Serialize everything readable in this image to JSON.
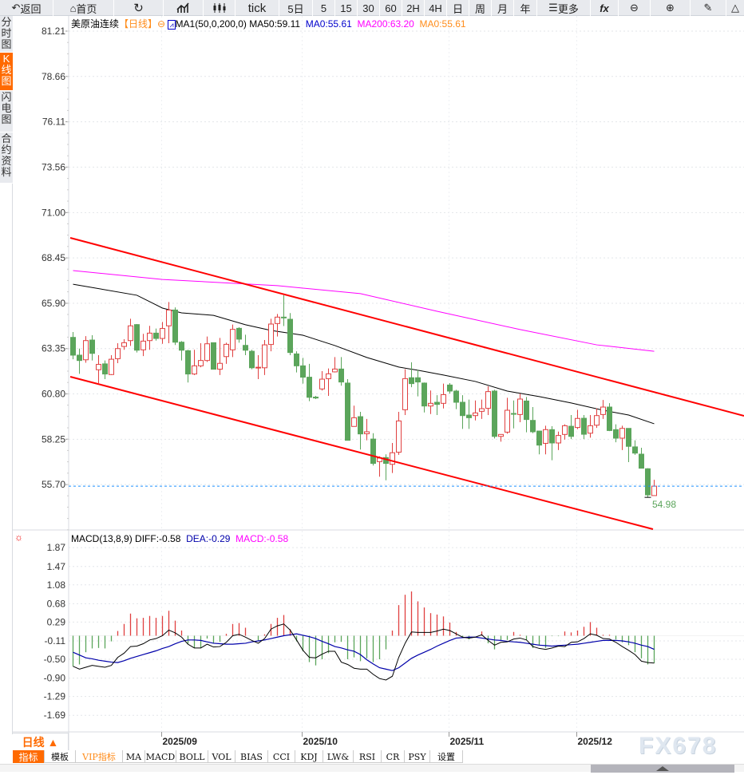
{
  "toolbar": {
    "back": "返回",
    "home": "首页",
    "tick": "tick",
    "d5": "5日",
    "periods": [
      "5",
      "15",
      "30",
      "60",
      "2H",
      "4H",
      "日",
      "周",
      "月",
      "年"
    ],
    "more": "更多",
    "fx": "fx"
  },
  "sidebar": {
    "tabs": [
      "分时图",
      "K线图",
      "闪电图",
      "合约资料"
    ],
    "active": "K线图"
  },
  "legend": {
    "symbol": "美原油连续",
    "period": "【日线】",
    "ma_name": "MA1(50,0,200,0)",
    "ma50": "MA50:59.11",
    "ma0a": "MA0:55.61",
    "ma200": "MA200:63.20",
    "ma0b": "MA0:55.61"
  },
  "macd_legend": {
    "name": "MACD(13,8,9)",
    "diff": "DIFF:-0.58",
    "dea": "DEA:-0.29",
    "macd": "MACD:-0.58"
  },
  "last_low_label": "54.98",
  "xaxis_tab": "日线 ▲",
  "bottom_tabs": [
    "指标",
    "模板",
    "VIP指标",
    "MA",
    "MACD",
    "BOLL",
    "VOL",
    "BIAS",
    "CCI",
    "KDJ",
    "LW&",
    "RSI",
    "CR",
    "PSY",
    "设置"
  ],
  "watermark": "FX678",
  "colors": {
    "up": "#e04040",
    "down": "#5ba55b",
    "ma50": "#000000",
    "ma200": "#ff00ff",
    "trend": "#ff0000",
    "dea": "#0000aa",
    "last": "#1e90ff",
    "accent": "#ff6a00"
  },
  "chart_data": [
    {
      "type": "candlestick",
      "title": "美原油连续",
      "yticks": [
        "81.21",
        "78.66",
        "76.11",
        "73.56",
        "71.00",
        "68.45",
        "65.90",
        "63.35",
        "60.80",
        "58.25",
        "55.70"
      ],
      "ylim": [
        55.7,
        81.21
      ],
      "xticks": [
        {
          "label": "2025/09",
          "index": 14
        },
        {
          "label": "2025/10",
          "index": 36
        },
        {
          "label": "2025/11",
          "index": 59
        },
        {
          "label": "2025/12",
          "index": 79
        }
      ],
      "last_price": 55.61,
      "ohlc": [
        [
          63.98,
          64.28,
          62.75,
          62.98
        ],
        [
          62.98,
          63.35,
          61.93,
          62.68
        ],
        [
          62.72,
          64.05,
          62.55,
          63.8
        ],
        [
          63.83,
          64.1,
          62.68,
          63.08
        ],
        [
          62.16,
          62.98,
          61.41,
          62.46
        ],
        [
          62.49,
          62.68,
          61.63,
          61.92
        ],
        [
          61.89,
          62.98,
          61.86,
          62.75
        ],
        [
          62.78,
          63.65,
          62.53,
          63.35
        ],
        [
          63.47,
          63.88,
          63.28,
          63.68
        ],
        [
          63.8,
          65.03,
          63.5,
          64.63
        ],
        [
          64.7,
          64.73,
          63.13,
          63.26
        ],
        [
          63.28,
          64.18,
          62.93,
          63.77
        ],
        [
          63.8,
          64.63,
          63.28,
          64.22
        ],
        [
          64.22,
          64.48,
          63.8,
          63.92
        ],
        [
          63.92,
          64.85,
          63.62,
          64.48
        ],
        [
          64.63,
          65.97,
          63.65,
          65.52
        ],
        [
          65.52,
          65.67,
          63.55,
          63.71
        ],
        [
          63.71,
          63.77,
          62.68,
          63.26
        ],
        [
          63.23,
          63.28,
          61.44,
          61.92
        ],
        [
          61.92,
          63.28,
          61.86,
          62.38
        ],
        [
          62.38,
          63.65,
          62.3,
          62.68
        ],
        [
          62.68,
          64.03,
          62.6,
          63.62
        ],
        [
          63.68,
          63.7,
          62.18,
          62.19
        ],
        [
          62.19,
          63.95,
          61.86,
          62.52
        ],
        [
          62.9,
          63.68,
          62.49,
          63.59
        ],
        [
          63.28,
          64.7,
          62.87,
          64.43
        ],
        [
          64.49,
          64.55,
          63.68,
          63.88
        ],
        [
          63.53,
          64.13,
          62.98,
          63.26
        ],
        [
          63.2,
          63.28,
          62.19,
          62.27
        ],
        [
          62.27,
          62.98,
          61.63,
          62.3
        ],
        [
          62.27,
          63.83,
          61.86,
          63.56
        ],
        [
          63.58,
          65.03,
          63.2,
          64.73
        ],
        [
          64.76,
          65.3,
          64.03,
          65.12
        ],
        [
          65.12,
          66.35,
          64.62,
          65.1
        ],
        [
          65.0,
          65.35,
          62.98,
          63.13
        ],
        [
          63.05,
          63.2,
          62.01,
          62.38
        ],
        [
          62.38,
          62.83,
          61.38,
          61.74
        ],
        [
          61.74,
          62.49,
          60.39,
          60.61
        ],
        [
          60.62,
          60.69,
          60.51,
          60.57
        ],
        [
          61.08,
          62.08,
          60.99,
          61.63
        ],
        [
          61.66,
          62.23,
          60.69,
          61.93
        ],
        [
          62.04,
          62.87,
          62.01,
          62.2
        ],
        [
          62.2,
          62.87,
          61.26,
          61.47
        ],
        [
          61.41,
          61.63,
          58.19,
          58.19
        ],
        [
          58.97,
          60.14,
          58.97,
          59.46
        ],
        [
          59.52,
          59.79,
          57.67,
          58.55
        ],
        [
          58.56,
          59.39,
          58.19,
          58.67
        ],
        [
          58.26,
          58.59,
          56.77,
          56.89
        ],
        [
          56.99,
          57.29,
          56.14,
          57.19
        ],
        [
          57.22,
          57.4,
          55.94,
          56.89
        ],
        [
          56.84,
          58.04,
          56.35,
          57.49
        ],
        [
          57.52,
          59.79,
          57.37,
          59.28
        ],
        [
          59.91,
          62.19,
          59.61,
          61.66
        ],
        [
          61.71,
          62.58,
          61.18,
          61.38
        ],
        [
          61.71,
          62.16,
          60.66,
          61.47
        ],
        [
          61.41,
          61.44,
          59.76,
          60.12
        ],
        [
          60.12,
          60.99,
          59.67,
          60.27
        ],
        [
          60.33,
          60.73,
          59.61,
          60.21
        ],
        [
          60.27,
          61.38,
          59.98,
          60.76
        ],
        [
          61.3,
          61.41,
          60.81,
          60.96
        ],
        [
          60.96,
          61.03,
          59.94,
          60.33
        ],
        [
          60.33,
          60.73,
          58.83,
          59.58
        ],
        [
          59.61,
          60.48,
          58.83,
          59.46
        ],
        [
          59.58,
          60.43,
          59.31,
          59.73
        ],
        [
          59.82,
          60.48,
          59.39,
          59.97
        ],
        [
          59.99,
          61.23,
          59.61,
          60.93
        ],
        [
          60.96,
          61.03,
          58.29,
          58.41
        ],
        [
          58.41,
          58.53,
          58.11,
          58.52
        ],
        [
          58.65,
          60.58,
          58.56,
          59.88
        ],
        [
          59.7,
          60.43,
          58.86,
          59.68
        ],
        [
          59.64,
          60.81,
          59.21,
          60.51
        ],
        [
          60.4,
          60.63,
          58.64,
          59.36
        ],
        [
          59.31,
          60.06,
          58.59,
          58.67
        ],
        [
          58.71,
          58.71,
          57.4,
          57.92
        ],
        [
          58.02,
          59.01,
          57.4,
          58.79
        ],
        [
          58.79,
          58.98,
          57.07,
          58.04
        ],
        [
          58.04,
          58.68,
          57.64,
          58.46
        ],
        [
          58.52,
          59.09,
          58.23,
          59.01
        ],
        [
          58.98,
          59.61,
          58.26,
          58.41
        ],
        [
          58.91,
          59.91,
          58.82,
          59.42
        ],
        [
          59.43,
          59.61,
          58.26,
          58.53
        ],
        [
          58.59,
          59.61,
          58.34,
          59.01
        ],
        [
          59.04,
          59.99,
          58.89,
          59.58
        ],
        [
          59.64,
          60.46,
          59.39,
          60.06
        ],
        [
          60.06,
          60.28,
          58.71,
          58.74
        ],
        [
          58.79,
          59.09,
          58.08,
          58.31
        ],
        [
          58.31,
          59.01,
          57.64,
          58.86
        ],
        [
          58.86,
          58.86,
          56.96,
          57.85
        ],
        [
          57.82,
          58.19,
          57.37,
          57.47
        ],
        [
          57.41,
          57.77,
          56.62,
          56.62
        ],
        [
          56.59,
          56.62,
          54.98,
          55.12
        ],
        [
          55.08,
          55.97,
          55.08,
          55.61
        ]
      ],
      "ma50": [
        [
          0,
          66.97
        ],
        [
          10,
          66.35
        ],
        [
          14,
          65.63
        ],
        [
          17,
          65.36
        ],
        [
          22,
          65.22
        ],
        [
          27,
          64.69
        ],
        [
          31,
          64.37
        ],
        [
          36,
          64.1
        ],
        [
          41,
          63.52
        ],
        [
          46,
          62.85
        ],
        [
          51,
          62.31
        ],
        [
          54,
          62.13
        ],
        [
          58,
          61.86
        ],
        [
          63,
          61.5
        ],
        [
          68,
          60.96
        ],
        [
          73,
          60.65
        ],
        [
          78,
          60.29
        ],
        [
          83,
          59.88
        ],
        [
          87,
          59.61
        ],
        [
          91,
          59.12
        ]
      ],
      "ma200": [
        [
          0,
          67.74
        ],
        [
          14,
          67.24
        ],
        [
          32,
          66.89
        ],
        [
          45,
          66.44
        ],
        [
          57,
          65.45
        ],
        [
          70,
          64.42
        ],
        [
          82,
          63.56
        ],
        [
          91,
          63.2
        ]
      ]
    },
    {
      "type": "macd",
      "title": "MACD(13,8,9)",
      "yticks": [
        "1.87",
        "1.47",
        "1.08",
        "0.68",
        "0.29",
        "-0.11",
        "-0.50",
        "-0.90",
        "-1.29",
        "-1.69"
      ],
      "ylim": [
        -1.69,
        1.87
      ],
      "macd": [
        -0.65,
        -0.61,
        -0.35,
        -0.27,
        -0.26,
        -0.27,
        -0.12,
        0.1,
        0.25,
        0.47,
        0.37,
        0.38,
        0.42,
        0.38,
        0.42,
        0.53,
        0.32,
        0.11,
        -0.17,
        -0.26,
        -0.26,
        -0.06,
        -0.16,
        -0.13,
        0.04,
        0.25,
        0.27,
        0.17,
        0.0,
        -0.1,
        0.03,
        0.25,
        0.38,
        0.44,
        0.14,
        -0.12,
        -0.33,
        -0.56,
        -0.63,
        -0.5,
        -0.37,
        -0.14,
        -0.13,
        -0.5,
        -0.46,
        -0.54,
        -0.48,
        -0.56,
        -0.5,
        -0.29,
        0.11,
        0.65,
        0.87,
        0.94,
        0.73,
        0.6,
        0.48,
        0.45,
        0.41,
        0.28,
        0.08,
        -0.04,
        -0.08,
        0.0,
        0.09,
        -0.16,
        -0.29,
        -0.09,
        -0.09,
        0.08,
        0.02,
        -0.09,
        -0.26,
        -0.2,
        -0.26,
        -0.01,
        -0.01,
        0.09,
        0.07,
        0.11,
        0.19,
        0.29,
        0.17,
        0.02,
        0.02,
        -0.08,
        -0.14,
        -0.2,
        -0.35,
        -0.48,
        -0.61,
        -0.58
      ],
      "diff": [
        -0.65,
        -0.71,
        -0.67,
        -0.63,
        -0.65,
        -0.67,
        -0.63,
        -0.46,
        -0.37,
        -0.23,
        -0.22,
        -0.17,
        -0.09,
        -0.06,
        0.0,
        0.12,
        0.06,
        -0.03,
        -0.18,
        -0.26,
        -0.26,
        -0.18,
        -0.24,
        -0.23,
        -0.14,
        0.0,
        0.03,
        -0.03,
        -0.1,
        -0.16,
        -0.06,
        0.14,
        0.21,
        0.25,
        0.12,
        -0.09,
        -0.31,
        -0.46,
        -0.47,
        -0.39,
        -0.33,
        -0.33,
        -0.56,
        -0.61,
        -0.69,
        -0.71,
        -0.71,
        -0.82,
        -0.91,
        -0.94,
        -0.86,
        -0.46,
        -0.16,
        0.08,
        0.07,
        0.07,
        0.07,
        0.1,
        0.14,
        0.11,
        0.04,
        -0.03,
        -0.05,
        -0.03,
        0.02,
        -0.1,
        -0.2,
        -0.14,
        -0.13,
        -0.07,
        -0.05,
        -0.09,
        -0.23,
        -0.27,
        -0.29,
        -0.26,
        -0.22,
        -0.23,
        -0.14,
        -0.13,
        -0.06,
        0.04,
        0.01,
        -0.06,
        -0.07,
        -0.14,
        -0.23,
        -0.31,
        -0.4,
        -0.54,
        -0.57,
        -0.58
      ],
      "dea": [
        -0.35,
        -0.41,
        -0.47,
        -0.49,
        -0.52,
        -0.54,
        -0.56,
        -0.57,
        -0.53,
        -0.48,
        -0.44,
        -0.4,
        -0.36,
        -0.32,
        -0.27,
        -0.23,
        -0.17,
        -0.12,
        -0.09,
        -0.09,
        -0.1,
        -0.13,
        -0.16,
        -0.17,
        -0.18,
        -0.18,
        -0.17,
        -0.16,
        -0.13,
        -0.11,
        -0.09,
        -0.06,
        -0.03,
        0.0,
        0.02,
        0.04,
        0.01,
        -0.02,
        -0.06,
        -0.12,
        -0.17,
        -0.23,
        -0.26,
        -0.3,
        -0.33,
        -0.4,
        -0.51,
        -0.6,
        -0.68,
        -0.71,
        -0.74,
        -0.68,
        -0.58,
        -0.48,
        -0.41,
        -0.35,
        -0.29,
        -0.22,
        -0.16,
        -0.1,
        -0.05,
        -0.04,
        -0.03,
        -0.03,
        -0.05,
        -0.07,
        -0.09,
        -0.1,
        -0.12,
        -0.13,
        -0.14,
        -0.16,
        -0.18,
        -0.2,
        -0.21,
        -0.22,
        -0.21,
        -0.2,
        -0.19,
        -0.18,
        -0.16,
        -0.14,
        -0.12,
        -0.1,
        -0.1,
        -0.1,
        -0.11,
        -0.13,
        -0.16,
        -0.2,
        -0.23,
        -0.29
      ]
    }
  ]
}
